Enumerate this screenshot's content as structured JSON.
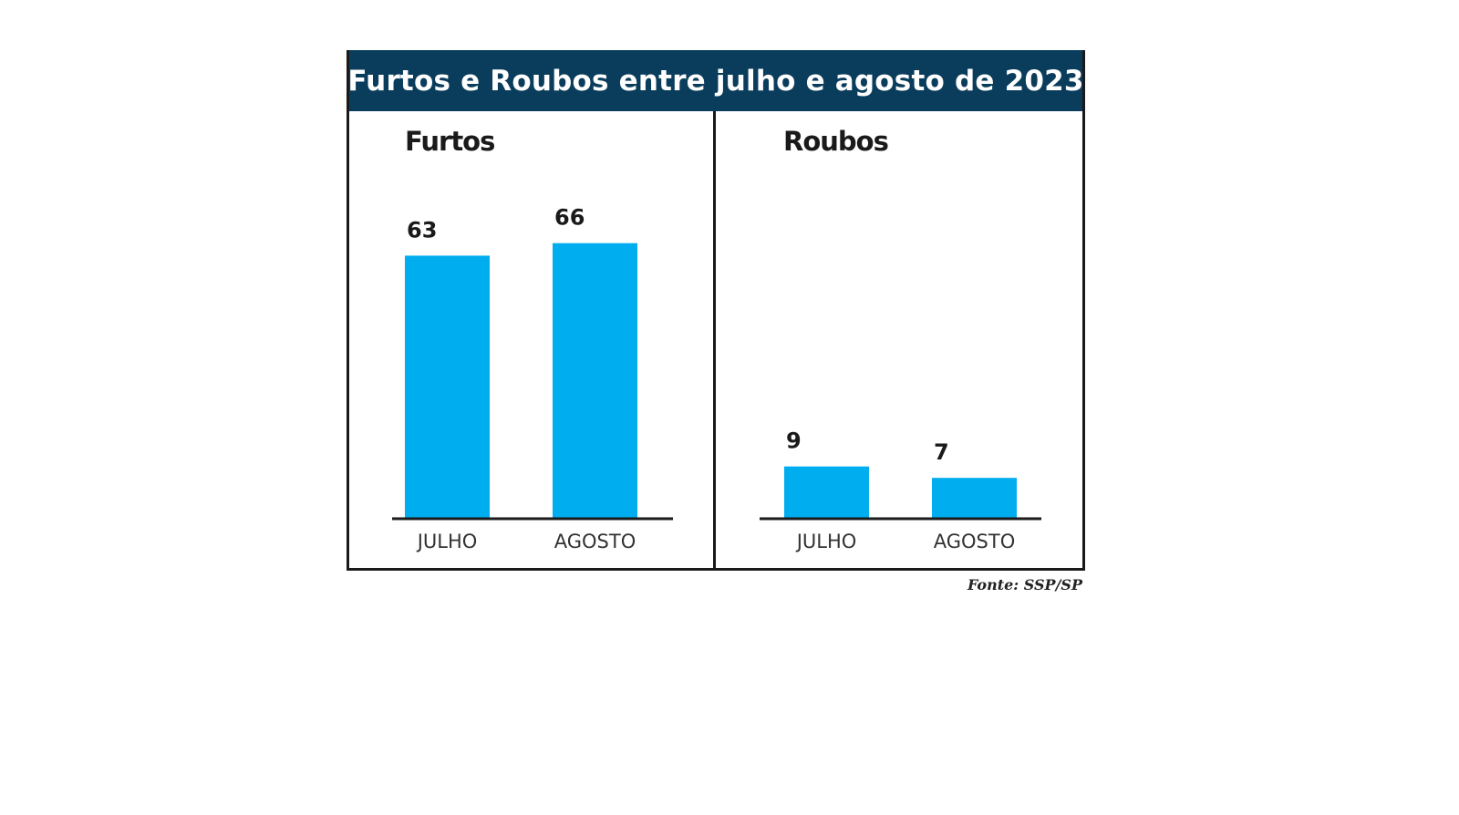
{
  "title": "Furtos e Roubos entre julho e agosto de 2023",
  "source": "Fonte: SSP/SP",
  "colors": {
    "header": "#0a3d5c",
    "bar": "#00adef",
    "axis": "#1a1a1a"
  },
  "chart_data": [
    {
      "type": "bar",
      "title": "Furtos",
      "categories": [
        "JULHO",
        "AGOSTO"
      ],
      "values": [
        63,
        66
      ],
      "ylim": [
        0,
        85
      ],
      "xlabel": "",
      "ylabel": ""
    },
    {
      "type": "bar",
      "title": "Roubos",
      "categories": [
        "JULHO",
        "AGOSTO"
      ],
      "values": [
        9,
        7
      ],
      "ylim": [
        0,
        62
      ],
      "xlabel": "",
      "ylabel": ""
    }
  ]
}
